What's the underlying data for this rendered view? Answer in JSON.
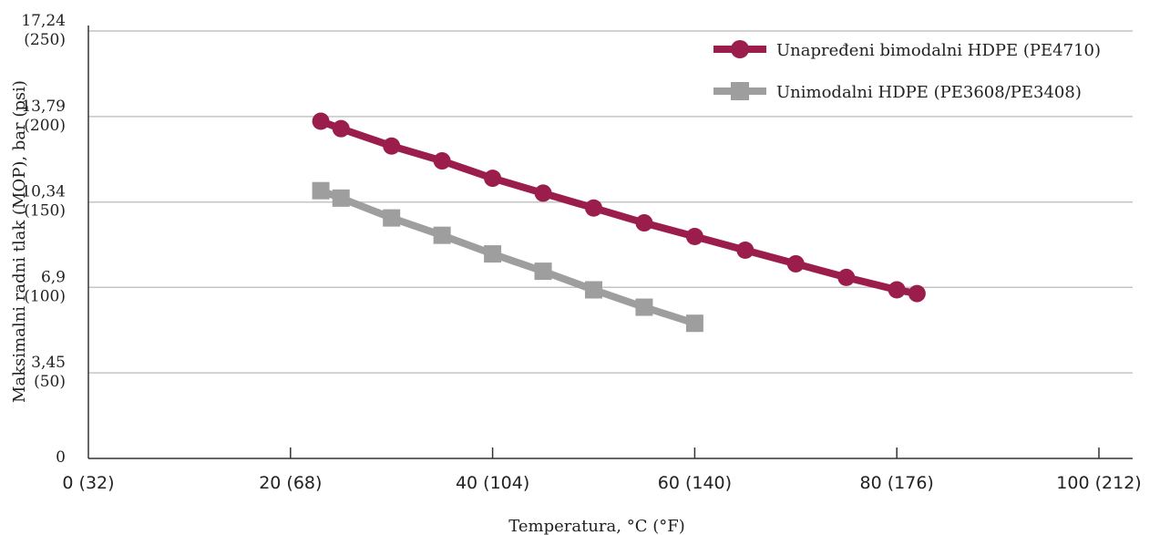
{
  "chart_data": {
    "type": "line",
    "title": "",
    "xlabel": "Temperatura, °C  (°F)",
    "ylabel": "Maksimalni radni tlak (MOP), bar (psi)",
    "xlim": [
      0,
      100
    ],
    "ylim": [
      0,
      17.24
    ],
    "x_ticks": [
      {
        "value": 0,
        "label": "0 (32)"
      },
      {
        "value": 20,
        "label": "20 (68)"
      },
      {
        "value": 40,
        "label": "40 (104)"
      },
      {
        "value": 60,
        "label": "60 (140)"
      },
      {
        "value": 80,
        "label": "80 (176)"
      },
      {
        "value": 100,
        "label": "100 (212)"
      }
    ],
    "y_ticks": [
      {
        "value": 0,
        "label": "0",
        "sublabel": ""
      },
      {
        "value": 3.45,
        "label": "3,45",
        "sublabel": "(50)"
      },
      {
        "value": 6.9,
        "label": "6,9",
        "sublabel": "(100)"
      },
      {
        "value": 10.34,
        "label": "10,34",
        "sublabel": "(150)"
      },
      {
        "value": 13.79,
        "label": "13,79",
        "sublabel": "(200)"
      },
      {
        "value": 17.24,
        "label": "17,24",
        "sublabel": "(250)"
      }
    ],
    "grid": "horizontal",
    "legend_position": "top-right",
    "series": [
      {
        "name": "Unapređeni bimodalni HDPE (PE4710)",
        "color": "#9b1d4b",
        "marker": "circle",
        "x": [
          23,
          25,
          30,
          35,
          40,
          45,
          50,
          55,
          60,
          65,
          70,
          75,
          80,
          82
        ],
        "y": [
          13.6,
          13.3,
          12.6,
          12.0,
          11.3,
          10.7,
          10.1,
          9.5,
          8.95,
          8.4,
          7.85,
          7.3,
          6.8,
          6.65
        ]
      },
      {
        "name": "Unimodalni HDPE (PE3608/PE3408)",
        "color": "#9e9e9e",
        "marker": "square",
        "x": [
          23,
          25,
          30,
          35,
          40,
          45,
          50,
          55,
          60
        ],
        "y": [
          10.8,
          10.5,
          9.7,
          9.0,
          8.25,
          7.55,
          6.8,
          6.1,
          5.45
        ]
      }
    ]
  }
}
